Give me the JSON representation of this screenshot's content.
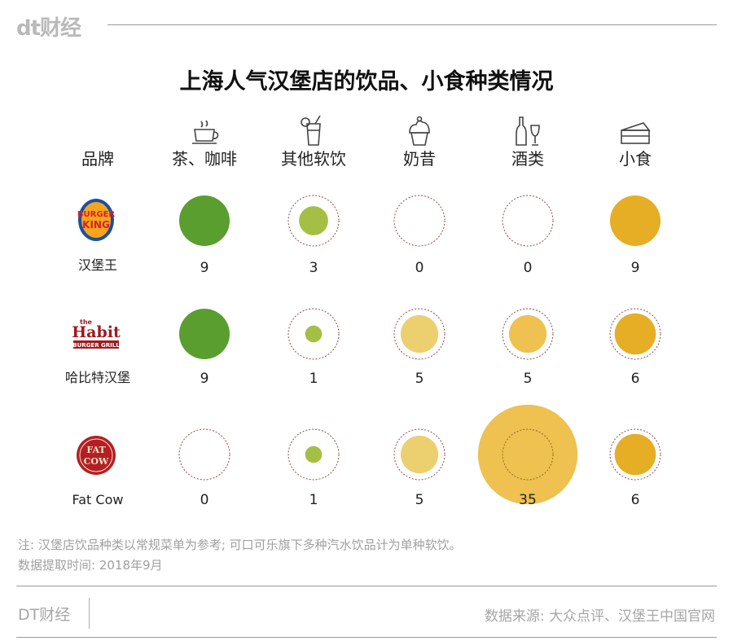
{
  "header": {
    "logo": "dt财经"
  },
  "chart_data": {
    "type": "bubble-grid",
    "title": "上海人气汉堡店的饮品、小食种类情况",
    "row_header": "品牌",
    "categories": [
      "茶、咖啡",
      "其他软饮",
      "奶昔",
      "酒类",
      "小食"
    ],
    "icons": [
      "coffee-cup-icon",
      "soft-drink-icon",
      "milkshake-icon",
      "wine-bottle-icon",
      "cake-slice-icon"
    ],
    "category_colors": [
      "#5a9e2f",
      "#a5bf45",
      "#ecd070",
      "#eec150",
      "#e5ae25"
    ],
    "reference_value": 9,
    "series": [
      {
        "name": "汉堡王",
        "logo_text": [
          "BURGER",
          "KING"
        ],
        "values": [
          9,
          3,
          0,
          0,
          9
        ]
      },
      {
        "name": "哈比特汉堡",
        "logo_text": [
          "the",
          "Habit",
          "BURGER GRILL"
        ],
        "values": [
          9,
          1,
          5,
          5,
          6
        ]
      },
      {
        "name": "Fat Cow",
        "logo_text": [
          "FAT",
          "COW"
        ],
        "values": [
          0,
          1,
          5,
          35,
          6
        ]
      }
    ]
  },
  "notes": {
    "line1": "注: 汉堡店饮品种类以常规菜单为参考; 可口可乐旗下多种汽水饮品计为单种软饮。",
    "line2": "数据提取时间: 2018年9月"
  },
  "footer": {
    "brand": "DT财经",
    "source": "数据来源: 大众点评、汉堡王中国官网"
  }
}
